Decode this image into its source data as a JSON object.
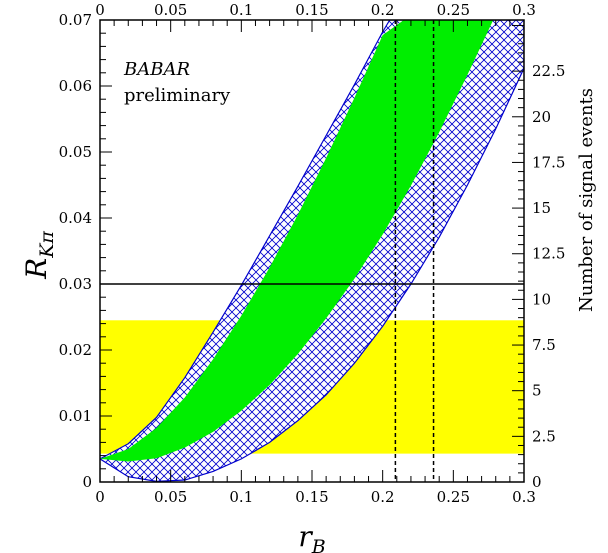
{
  "chart_data": {
    "type": "area",
    "xlabel": "r_B",
    "ylabel": "R_Kπ",
    "y2label": "Number of signal events",
    "xlim": [
      0,
      0.3
    ],
    "ylim": [
      0,
      0.07
    ],
    "y2lim": [
      0,
      25.3
    ],
    "x_ticks": [
      "0",
      "0.05",
      "0.1",
      "0.15",
      "0.2",
      "0.25",
      "0.3"
    ],
    "x_ticks_top": [
      "0",
      "0.05",
      "0.1",
      "0.15",
      "0.2",
      "0.25",
      "0.3"
    ],
    "y_ticks": [
      "0",
      "0.01",
      "0.02",
      "0.03",
      "0.04",
      "0.05",
      "0.06",
      "0.07"
    ],
    "y2_ticks": [
      "0",
      "2.5",
      "5",
      "7.5",
      "10",
      "12.5",
      "15",
      "17.5",
      "20",
      "22.5"
    ],
    "annotation": {
      "experiment": "BABAR",
      "status": "preliminary"
    },
    "yellow_band": {
      "x": [
        0,
        0.3
      ],
      "y": [
        0.0043,
        0.0245
      ]
    },
    "horizontal_line": {
      "y": 0.03
    },
    "vertical_lines": [
      {
        "x": 0.209
      },
      {
        "x": 0.236
      }
    ],
    "regions": {
      "hatched_outer": {
        "upper": {
          "x": [
            0,
            0.02,
            0.04,
            0.06,
            0.08,
            0.1,
            0.12,
            0.14,
            0.16,
            0.18,
            0.2,
            0.205
          ],
          "y": [
            0.0035,
            0.0058,
            0.0098,
            0.0158,
            0.0227,
            0.0298,
            0.0373,
            0.0448,
            0.0525,
            0.0602,
            0.0682,
            0.07
          ]
        },
        "lower": {
          "x": [
            0,
            0.02,
            0.04,
            0.06,
            0.08,
            0.1,
            0.12,
            0.14,
            0.16,
            0.18,
            0.2,
            0.22,
            0.24,
            0.26,
            0.28,
            0.3
          ],
          "y": [
            0.0035,
            0.0008,
            0.0001,
            0.0003,
            0.0016,
            0.0035,
            0.006,
            0.0093,
            0.0132,
            0.018,
            0.0236,
            0.03,
            0.0371,
            0.045,
            0.0535,
            0.0627
          ]
        }
      },
      "green": {
        "upper": {
          "x": [
            0,
            0.02,
            0.04,
            0.06,
            0.08,
            0.1,
            0.12,
            0.14,
            0.16,
            0.18,
            0.2,
            0.215
          ],
          "y": [
            0.0035,
            0.005,
            0.0082,
            0.0128,
            0.0186,
            0.0252,
            0.0325,
            0.0405,
            0.0491,
            0.0582,
            0.0677,
            0.07
          ]
        },
        "lower": {
          "x": [
            0,
            0.02,
            0.04,
            0.06,
            0.08,
            0.1,
            0.12,
            0.14,
            0.16,
            0.18,
            0.2,
            0.22,
            0.24,
            0.26,
            0.28,
            0.3
          ],
          "y": [
            0.0035,
            0.0031,
            0.0036,
            0.0052,
            0.0076,
            0.0108,
            0.0147,
            0.0194,
            0.0248,
            0.0308,
            0.0375,
            0.0449,
            0.053,
            0.0617,
            0.0708,
            0.07
          ]
        }
      }
    },
    "colors": {
      "green": "#00ee00",
      "yellow": "#ffff00",
      "hatch": "#0000cc",
      "line": "#000000"
    }
  }
}
